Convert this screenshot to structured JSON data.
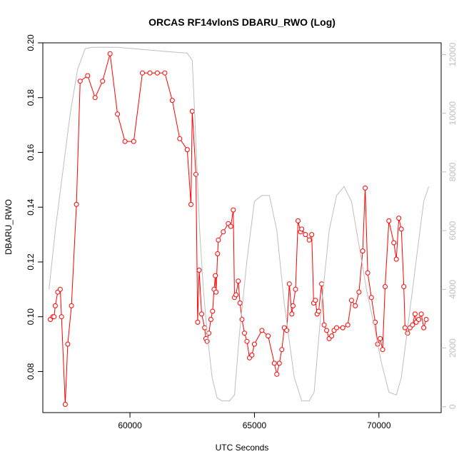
{
  "chart_data": {
    "type": "line",
    "title": "ORCAS RF14vlonS DBARU_RWO (Log)",
    "xlabel": "UTC Seconds",
    "ylabel": "DBARU_RWO",
    "xlim": [
      56500,
      72500
    ],
    "ylim": [
      0.065,
      0.2
    ],
    "y2lim": [
      -200,
      12400
    ],
    "x_ticks": [
      60000,
      65000,
      70000
    ],
    "x_tick_labels": [
      "60000",
      "65000",
      "70000"
    ],
    "y_ticks": [
      0.08,
      0.1,
      0.12,
      0.14,
      0.16,
      0.18,
      0.2
    ],
    "y_tick_labels": [
      "0.08",
      "0.10",
      "0.12",
      "0.14",
      "0.16",
      "0.18",
      "0.20"
    ],
    "y2_ticks": [
      0,
      2000,
      4000,
      6000,
      8000,
      10000,
      12000
    ],
    "y2_tick_labels": [
      "0",
      "2000",
      "4000",
      "6000",
      "8000",
      "10000",
      "12000"
    ],
    "grid": false,
    "colors": {
      "series": "#ff0000",
      "altitude": "#bebebe",
      "axis": "#000000"
    },
    "series": [
      {
        "axis": "left",
        "style": "line-with-open-circles",
        "color": "#ff0000",
        "points": [
          [
            56800,
            0.099
          ],
          [
            56900,
            0.1
          ],
          [
            56950,
            0.1
          ],
          [
            57000,
            0.104
          ],
          [
            57100,
            0.109
          ],
          [
            57200,
            0.11
          ],
          [
            57250,
            0.1
          ],
          [
            57400,
            0.068
          ],
          [
            57500,
            0.09
          ],
          [
            57650,
            0.104
          ],
          [
            57850,
            0.141
          ],
          [
            58000,
            0.186
          ],
          [
            58300,
            0.188
          ],
          [
            58600,
            0.18
          ],
          [
            58900,
            0.186
          ],
          [
            59200,
            0.196
          ],
          [
            59500,
            0.174
          ],
          [
            59800,
            0.164
          ],
          [
            60150,
            0.164
          ],
          [
            60500,
            0.189
          ],
          [
            60800,
            0.189
          ],
          [
            61100,
            0.189
          ],
          [
            61400,
            0.189
          ],
          [
            61700,
            0.179
          ],
          [
            62000,
            0.165
          ],
          [
            62300,
            0.161
          ],
          [
            62450,
            0.141
          ],
          [
            62500,
            0.175
          ],
          [
            62650,
            0.152
          ],
          [
            62720,
            0.098
          ],
          [
            62780,
            0.117
          ],
          [
            62880,
            0.101
          ],
          [
            63000,
            0.096
          ],
          [
            63050,
            0.092
          ],
          [
            63100,
            0.091
          ],
          [
            63170,
            0.094
          ],
          [
            63250,
            0.099
          ],
          [
            63320,
            0.102
          ],
          [
            63380,
            0.11
          ],
          [
            63430,
            0.115
          ],
          [
            63460,
            0.109
          ],
          [
            63520,
            0.123
          ],
          [
            63550,
            0.128
          ],
          [
            63750,
            0.131
          ],
          [
            63950,
            0.134
          ],
          [
            64050,
            0.133
          ],
          [
            64150,
            0.139
          ],
          [
            64200,
            0.107
          ],
          [
            64260,
            0.108
          ],
          [
            64350,
            0.113
          ],
          [
            64420,
            0.105
          ],
          [
            64500,
            0.099
          ],
          [
            64600,
            0.094
          ],
          [
            64700,
            0.091
          ],
          [
            64800,
            0.085
          ],
          [
            64900,
            0.086
          ],
          [
            65000,
            0.09
          ],
          [
            65300,
            0.095
          ],
          [
            65550,
            0.093
          ],
          [
            65800,
            0.083
          ],
          [
            65900,
            0.079
          ],
          [
            66000,
            0.083
          ],
          [
            66100,
            0.088
          ],
          [
            66200,
            0.096
          ],
          [
            66300,
            0.095
          ],
          [
            66400,
            0.112
          ],
          [
            66500,
            0.101
          ],
          [
            66550,
            0.104
          ],
          [
            66650,
            0.11
          ],
          [
            66750,
            0.135
          ],
          [
            66850,
            0.131
          ],
          [
            66900,
            0.132
          ],
          [
            67050,
            0.13
          ],
          [
            67200,
            0.128
          ],
          [
            67300,
            0.13
          ],
          [
            67380,
            0.105
          ],
          [
            67450,
            0.106
          ],
          [
            67520,
            0.101
          ],
          [
            67580,
            0.102
          ],
          [
            67700,
            0.112
          ],
          [
            67800,
            0.097
          ],
          [
            67900,
            0.095
          ],
          [
            68000,
            0.092
          ],
          [
            68100,
            0.093
          ],
          [
            68200,
            0.095
          ],
          [
            68300,
            0.096
          ],
          [
            68550,
            0.096
          ],
          [
            68750,
            0.097
          ],
          [
            68900,
            0.106
          ],
          [
            69050,
            0.104
          ],
          [
            69200,
            0.109
          ],
          [
            69350,
            0.124
          ],
          [
            69450,
            0.147
          ],
          [
            69550,
            0.116
          ],
          [
            69700,
            0.107
          ],
          [
            69850,
            0.098
          ],
          [
            69950,
            0.09
          ],
          [
            70050,
            0.092
          ],
          [
            70150,
            0.088
          ],
          [
            70250,
            0.111
          ],
          [
            70400,
            0.135
          ],
          [
            70600,
            0.127
          ],
          [
            70700,
            0.121
          ],
          [
            70800,
            0.136
          ],
          [
            70900,
            0.132
          ],
          [
            71000,
            0.111
          ],
          [
            71050,
            0.096
          ],
          [
            71150,
            0.094
          ],
          [
            71250,
            0.096
          ],
          [
            71350,
            0.097
          ],
          [
            71450,
            0.101
          ],
          [
            71500,
            0.098
          ],
          [
            71600,
            0.099
          ],
          [
            71700,
            0.101
          ],
          [
            71800,
            0.096
          ],
          [
            71900,
            0.099
          ]
        ]
      },
      {
        "axis": "right",
        "style": "line",
        "color": "#bebebe",
        "points": [
          [
            56750,
            4000
          ],
          [
            57000,
            6000
          ],
          [
            57300,
            8000
          ],
          [
            57600,
            10000
          ],
          [
            57900,
            11500
          ],
          [
            58200,
            12200
          ],
          [
            58500,
            12250
          ],
          [
            59500,
            12250
          ],
          [
            61500,
            12100
          ],
          [
            62300,
            12050
          ],
          [
            62500,
            11800
          ],
          [
            62600,
            10000
          ],
          [
            62700,
            8000
          ],
          [
            62800,
            6000
          ],
          [
            62950,
            4000
          ],
          [
            63100,
            2500
          ],
          [
            63300,
            1000
          ],
          [
            63500,
            300
          ],
          [
            63700,
            200
          ],
          [
            64000,
            200
          ],
          [
            64200,
            400
          ],
          [
            64400,
            2500
          ],
          [
            64700,
            5000
          ],
          [
            65000,
            7000
          ],
          [
            65300,
            7200
          ],
          [
            65600,
            7200
          ],
          [
            65900,
            6000
          ],
          [
            66200,
            3500
          ],
          [
            66600,
            1000
          ],
          [
            66900,
            200
          ],
          [
            67200,
            200
          ],
          [
            67400,
            500
          ],
          [
            67700,
            3500
          ],
          [
            68000,
            6000
          ],
          [
            68300,
            7200
          ],
          [
            68600,
            7500
          ],
          [
            68900,
            7000
          ],
          [
            69200,
            5500
          ],
          [
            69500,
            4000
          ],
          [
            69800,
            2800
          ],
          [
            70100,
            1500
          ],
          [
            70400,
            500
          ],
          [
            70700,
            400
          ],
          [
            70900,
            1000
          ],
          [
            71200,
            3000
          ],
          [
            71500,
            5000
          ],
          [
            71800,
            7000
          ],
          [
            72000,
            7500
          ]
        ]
      }
    ]
  }
}
